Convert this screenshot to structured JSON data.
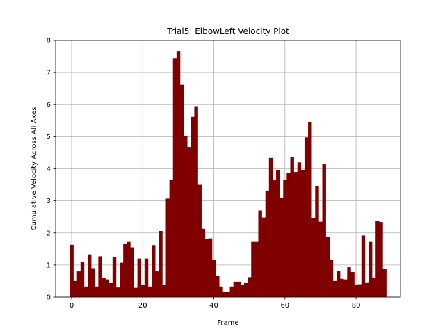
{
  "chart_data": {
    "type": "bar",
    "title": "Trial5: ElbowLeft Velocity Plot",
    "xlabel": "Frame",
    "ylabel": "Cumulative Velocity Across All Axes",
    "xlim": [
      -4.5,
      92.5
    ],
    "ylim": [
      0,
      8
    ],
    "xticks": [
      0,
      20,
      40,
      60,
      80
    ],
    "yticks": [
      0,
      1,
      2,
      3,
      4,
      5,
      6,
      7,
      8
    ],
    "grid": true,
    "bar_color": "#800000",
    "x": [
      0,
      1,
      2,
      3,
      4,
      5,
      6,
      7,
      8,
      9,
      10,
      11,
      12,
      13,
      14,
      15,
      16,
      17,
      18,
      19,
      20,
      21,
      22,
      23,
      24,
      25,
      26,
      27,
      28,
      29,
      30,
      31,
      32,
      33,
      34,
      35,
      36,
      37,
      38,
      39,
      40,
      41,
      42,
      43,
      44,
      45,
      46,
      47,
      48,
      49,
      50,
      51,
      52,
      53,
      54,
      55,
      56,
      57,
      58,
      59,
      60,
      61,
      62,
      63,
      64,
      65,
      66,
      67,
      68,
      69,
      70,
      71,
      72,
      73,
      74,
      75,
      76,
      77,
      78,
      79,
      80,
      81,
      82,
      83,
      84,
      85,
      86,
      87,
      88
    ],
    "values": [
      1.63,
      0.5,
      0.8,
      1.1,
      0.33,
      1.33,
      0.9,
      0.33,
      1.27,
      0.6,
      0.55,
      0.44,
      1.25,
      0.3,
      1.07,
      1.67,
      1.72,
      1.55,
      0.29,
      1.2,
      0.38,
      1.2,
      0.33,
      1.62,
      0.8,
      2.06,
      0.38,
      3.07,
      3.66,
      7.43,
      7.65,
      6.62,
      5.03,
      4.68,
      5.62,
      5.93,
      3.5,
      2.13,
      1.8,
      1.83,
      1.16,
      0.67,
      0.33,
      0.16,
      0.16,
      0.33,
      0.48,
      0.48,
      0.38,
      0.45,
      0.62,
      1.72,
      1.72,
      2.7,
      2.48,
      3.32,
      4.34,
      3.64,
      3.96,
      3.08,
      3.65,
      3.88,
      4.38,
      3.9,
      4.2,
      3.96,
      4.98,
      5.46,
      2.46,
      3.47,
      2.35,
      4.16,
      1.87,
      1.15,
      0.5,
      0.82,
      0.57,
      0.55,
      0.93,
      0.78,
      0.38,
      0.4,
      1.92,
      0.46,
      1.72,
      0.6,
      2.37,
      2.34,
      0.87
    ]
  }
}
